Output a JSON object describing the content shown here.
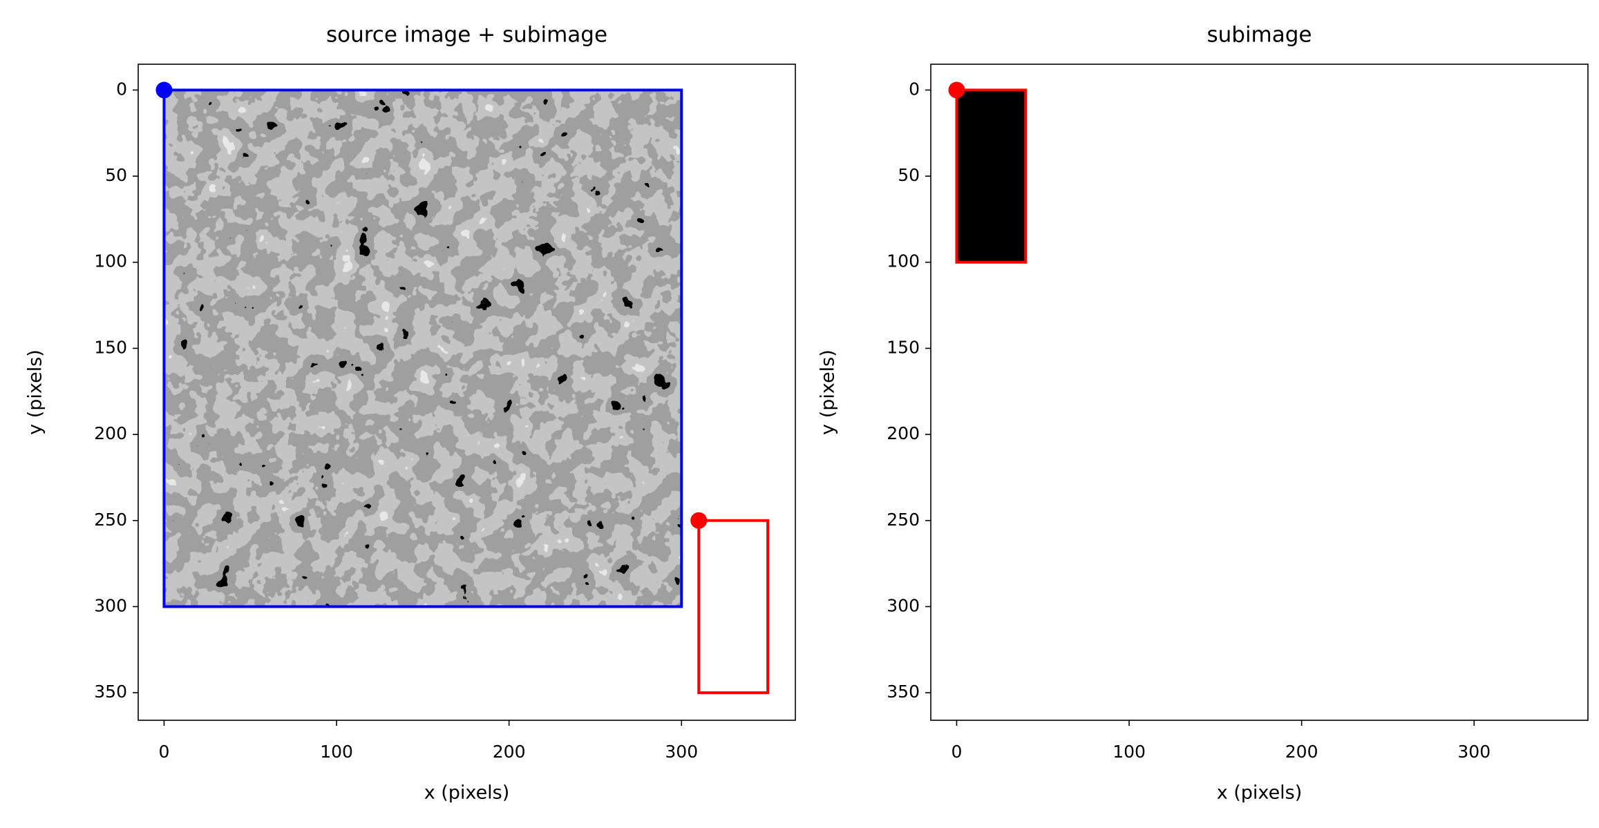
{
  "chart_data": [
    {
      "type": "overlay",
      "title": "source image + subimage",
      "xlabel": "x (pixels)",
      "ylabel": "y (pixels)",
      "xlim": [
        -15,
        366
      ],
      "ylim": [
        366,
        -15
      ],
      "xticks": [
        0,
        100,
        200,
        300
      ],
      "yticks": [
        0,
        50,
        100,
        150,
        200,
        250,
        300,
        350
      ],
      "image": {
        "x0": 0,
        "x1": 300,
        "y0": 0,
        "y1": 300
      },
      "rectangles": [
        {
          "x0": 0,
          "x1": 300,
          "y0": 0,
          "y1": 300,
          "color": "#0000ff",
          "fill": "none"
        },
        {
          "x0": 310,
          "x1": 350,
          "y0": 250,
          "y1": 350,
          "color": "#ff0000",
          "fill": "none"
        }
      ],
      "points": [
        {
          "x": 0,
          "y": 0,
          "color": "#0000ff"
        },
        {
          "x": 310,
          "y": 250,
          "color": "#ff0000"
        }
      ]
    },
    {
      "type": "overlay",
      "title": "subimage",
      "xlabel": "x (pixels)",
      "ylabel": "y (pixels)",
      "xlim": [
        -15,
        366
      ],
      "ylim": [
        366,
        -15
      ],
      "xticks": [
        0,
        100,
        200,
        300
      ],
      "yticks": [
        0,
        50,
        100,
        150,
        200,
        250,
        300,
        350
      ],
      "rectangles": [
        {
          "x0": 0,
          "x1": 40,
          "y0": 0,
          "y1": 100,
          "color": "#ff0000",
          "fill": "#000000"
        }
      ],
      "points": [
        {
          "x": 0,
          "y": 0,
          "color": "#ff0000"
        }
      ]
    }
  ]
}
